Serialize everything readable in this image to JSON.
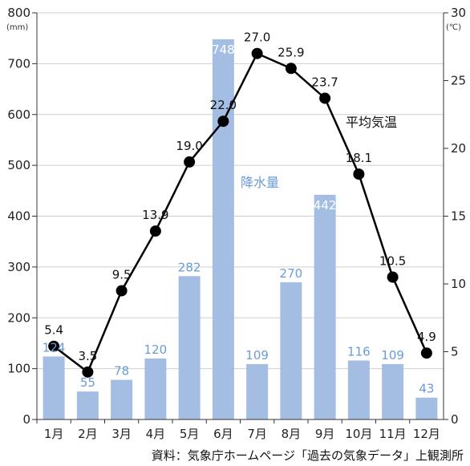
{
  "chart_data": {
    "type": "bar+line",
    "categories": [
      "1月",
      "2月",
      "3月",
      "4月",
      "5月",
      "6月",
      "7月",
      "8月",
      "9月",
      "10月",
      "11月",
      "12月"
    ],
    "series": [
      {
        "name": "降水量",
        "type": "bar",
        "axis": "left",
        "values": [
          124,
          55,
          78,
          120,
          282,
          748,
          109,
          270,
          442,
          116,
          109,
          43
        ],
        "color": "#a3bde3",
        "label_color": "#6a9bd6"
      },
      {
        "name": "平均気温",
        "type": "line",
        "axis": "right",
        "values": [
          5.4,
          3.5,
          9.5,
          13.9,
          19.0,
          22.0,
          27.0,
          25.9,
          23.7,
          18.1,
          10.5,
          4.9
        ],
        "labels": [
          "5.4",
          "3.5",
          "9.5",
          "13.9",
          "19.0",
          "22.0",
          "27.0",
          "25.9",
          "23.7",
          "18.1",
          "10.5",
          "4.9"
        ],
        "color": "#000000"
      }
    ],
    "y_left": {
      "unit": "(mm)",
      "ylim": [
        0,
        800
      ],
      "ticks": [
        "0",
        "100",
        "200",
        "300",
        "400",
        "500",
        "600",
        "700",
        "800"
      ]
    },
    "y_right": {
      "unit": "(℃)",
      "ylim": [
        0,
        30
      ],
      "ticks": [
        "0",
        "5",
        "10",
        "15",
        "20",
        "25",
        "30"
      ]
    },
    "grid": "horizontal",
    "source": "資料：気象庁ホームページ「過去の気象データ」上観測所"
  }
}
